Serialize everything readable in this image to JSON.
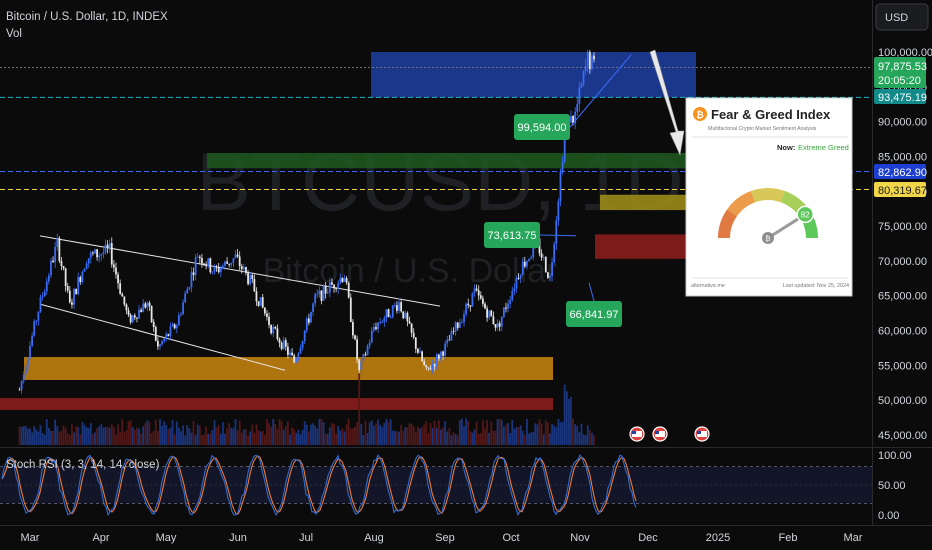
{
  "header": {
    "symbol_line": "Bitcoin / U.S. Dollar, 1D, INDEX",
    "vol_label": "Vol",
    "currency_button": "USD"
  },
  "watermark": {
    "ticker": "BTCUSD, 1D",
    "name": "Bitcoin / U.S. Dollar"
  },
  "price_tags": {
    "current": "97,875.53",
    "countdown": "20:05:20",
    "level_a": "93,475.19",
    "level_b": "82,862.90",
    "level_c": "80,319.67"
  },
  "callouts": {
    "high": "99,594.00",
    "mid": "73,613.75",
    "low": "66,841.97"
  },
  "fear_greed": {
    "title": "Fear & Greed Index",
    "subtitle": "Multifactorial Crypto Market Sentiment Analysis",
    "now_label": "Now:",
    "now_value": "Extreme Greed",
    "value": "82",
    "footer_left": "alternative.me",
    "footer_right": "Last updated: Nov 25, 2024",
    "value_number": 82
  },
  "stoch": {
    "label": "Stoch RSI (3, 3, 14, 14, close)",
    "ticks": [
      "100.00",
      "50.00",
      "0.00"
    ]
  },
  "colors": {
    "bull": "#3b6cf5",
    "bear": "#e6e6e6",
    "k_line": "#2f6bd6",
    "d_line": "#f07a2a",
    "zone_blue": "#1f3fa3",
    "zone_green": "#1f5a1f",
    "zone_yellow": "#9a8a18",
    "zone_red": "#8a1c1c",
    "zone_orange": "#c07f0e",
    "zone_red_low": "#8a1c1c",
    "tag_green": "#26a65b",
    "tag_teal": "#128a8a",
    "tag_blue": "#1c3fd1",
    "tag_yellow": "#f1d64a",
    "tag_orange": "#d97a0b"
  },
  "chart_data": {
    "type": "candlestick",
    "title": "Bitcoin / U.S. Dollar, 1D, INDEX",
    "x_ticks": [
      "Mar",
      "Apr",
      "May",
      "Jun",
      "Jul",
      "Aug",
      "Sep",
      "Oct",
      "Nov",
      "Dec",
      "2025",
      "Feb",
      "Mar"
    ],
    "y_ticks": [
      "100,000.00",
      "95,000.00",
      "90,000.00",
      "85,000.00",
      "80,000.00",
      "75,000.00",
      "70,000.00",
      "65,000.00",
      "60,000.00",
      "55,000.00",
      "50,000.00",
      "45,000.00"
    ],
    "ylim": [
      44000,
      102000
    ],
    "grid": false,
    "close_series": [
      {
        "date": "2024-02-25",
        "close": 51500
      },
      {
        "date": "2024-03-05",
        "close": 63000
      },
      {
        "date": "2024-03-14",
        "close": 72500
      },
      {
        "date": "2024-03-20",
        "close": 63500
      },
      {
        "date": "2024-03-28",
        "close": 70500
      },
      {
        "date": "2024-04-08",
        "close": 71500
      },
      {
        "date": "2024-04-17",
        "close": 61500
      },
      {
        "date": "2024-04-26",
        "close": 64000
      },
      {
        "date": "2024-05-01",
        "close": 57500
      },
      {
        "date": "2024-05-10",
        "close": 61000
      },
      {
        "date": "2024-05-20",
        "close": 71000
      },
      {
        "date": "2024-05-28",
        "close": 68500
      },
      {
        "date": "2024-06-07",
        "close": 70500
      },
      {
        "date": "2024-06-15",
        "close": 66500
      },
      {
        "date": "2024-06-24",
        "close": 60500
      },
      {
        "date": "2024-07-05",
        "close": 55500
      },
      {
        "date": "2024-07-15",
        "close": 64500
      },
      {
        "date": "2024-07-29",
        "close": 68000
      },
      {
        "date": "2024-08-05",
        "close": 54000
      },
      {
        "date": "2024-08-12",
        "close": 60500
      },
      {
        "date": "2024-08-24",
        "close": 64000
      },
      {
        "date": "2024-09-06",
        "close": 54000
      },
      {
        "date": "2024-09-16",
        "close": 58000
      },
      {
        "date": "2024-09-29",
        "close": 65500
      },
      {
        "date": "2024-10-10",
        "close": 60500
      },
      {
        "date": "2024-10-21",
        "close": 69000
      },
      {
        "date": "2024-10-29",
        "close": 72500
      },
      {
        "date": "2024-11-04",
        "close": 67500
      },
      {
        "date": "2024-11-11",
        "close": 88500
      },
      {
        "date": "2024-11-16",
        "close": 91000
      },
      {
        "date": "2024-11-22",
        "close": 99000
      },
      {
        "date": "2024-11-25",
        "close": 97875.53
      }
    ],
    "volume": "bars along bottom of price pane, spike Aug 5 and Nov 11-13",
    "stoch_rsi": {
      "range": [
        0,
        100
      ],
      "levels": [
        80,
        20
      ],
      "series": [
        "K",
        "D"
      ]
    }
  }
}
